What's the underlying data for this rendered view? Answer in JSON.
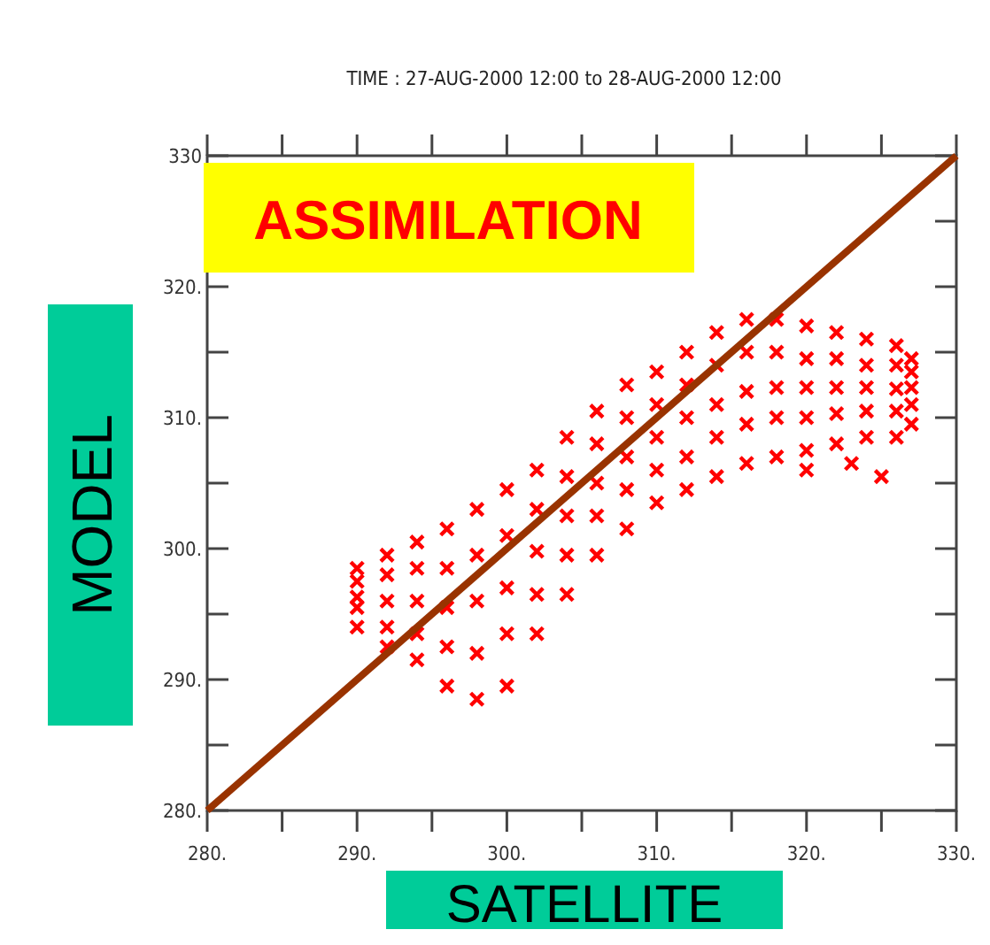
{
  "chart_data": {
    "type": "scatter",
    "title": "TIME : 27-AUG-2000 12:00 to 28-AUG-2000 12:00",
    "subtitle": "ASSIMILATION",
    "xlabel": "SATELLITE",
    "ylabel": "MODEL",
    "xlim": [
      280,
      330
    ],
    "ylim": [
      280,
      330
    ],
    "xticks": [
      {
        "value": 280,
        "label": "280."
      },
      {
        "value": 285,
        "label": null
      },
      {
        "value": 290,
        "label": "290."
      },
      {
        "value": 295,
        "label": null
      },
      {
        "value": 300,
        "label": "300."
      },
      {
        "value": 305,
        "label": null
      },
      {
        "value": 310,
        "label": "310."
      },
      {
        "value": 315,
        "label": null
      },
      {
        "value": 320,
        "label": "320."
      },
      {
        "value": 325,
        "label": null
      },
      {
        "value": 330,
        "label": "330."
      }
    ],
    "yticks": [
      {
        "value": 280,
        "label": "280."
      },
      {
        "value": 285,
        "label": null
      },
      {
        "value": 290,
        "label": "290."
      },
      {
        "value": 295,
        "label": null
      },
      {
        "value": 300,
        "label": "300."
      },
      {
        "value": 305,
        "label": null
      },
      {
        "value": 310,
        "label": "310."
      },
      {
        "value": 315,
        "label": null
      },
      {
        "value": 320,
        "label": "320."
      },
      {
        "value": 325,
        "label": null
      },
      {
        "value": 330,
        "label": "330"
      }
    ],
    "grid": false,
    "series": [
      {
        "marker": "cross",
        "color": "#ff0000",
        "x": [
          290,
          290,
          290,
          290,
          290,
          292,
          292,
          292,
          292,
          292,
          294,
          294,
          294,
          294,
          294,
          296,
          296,
          296,
          296,
          296,
          298,
          298,
          298,
          298,
          298,
          300,
          300,
          300,
          300,
          300,
          302,
          302,
          302,
          302,
          302,
          304,
          304,
          304,
          304,
          304,
          306,
          306,
          306,
          306,
          306,
          308,
          308,
          308,
          308,
          308,
          310,
          310,
          310,
          310,
          310,
          312,
          312,
          312,
          312,
          312,
          314,
          314,
          314,
          314,
          314,
          316,
          316,
          316,
          316,
          316,
          318,
          318,
          318,
          318,
          318,
          320,
          320,
          320,
          320,
          320,
          322,
          322,
          322,
          322,
          322,
          324,
          324,
          324,
          324,
          324,
          326,
          326,
          326,
          326,
          326,
          327,
          327,
          327,
          327,
          327,
          323,
          325,
          320
        ],
        "values": [
          294,
          295.5,
          296.3,
          297.5,
          298.5,
          292.5,
          294,
          296,
          298,
          299.5,
          291.5,
          293.5,
          296,
          298.5,
          300.5,
          289.5,
          292.5,
          295.5,
          298.5,
          301.5,
          288.5,
          292,
          296,
          299.5,
          303,
          289.5,
          293.5,
          297,
          301,
          304.5,
          293.5,
          296.5,
          299.8,
          303,
          306,
          296.5,
          299.5,
          302.5,
          305.5,
          308.5,
          299.5,
          302.5,
          305,
          308,
          310.5,
          301.5,
          304.5,
          307,
          310,
          312.5,
          303.5,
          306,
          308.5,
          311,
          313.5,
          304.5,
          307,
          310,
          312.5,
          315,
          305.5,
          308.5,
          311,
          314,
          316.5,
          306.5,
          309.5,
          312,
          315,
          317.5,
          307,
          310,
          312.3,
          315,
          317.5,
          307.5,
          310,
          312.3,
          314.5,
          317,
          308,
          310.3,
          312.3,
          314.5,
          316.5,
          308.5,
          310.5,
          312.3,
          314,
          316,
          308.5,
          310.5,
          312.2,
          314,
          315.5,
          309.5,
          311,
          312.3,
          313.5,
          314.5,
          306.5,
          305.5,
          306
        ]
      },
      {
        "type": "line",
        "color": "#993300",
        "x": [
          280,
          330
        ],
        "values": [
          280,
          330
        ]
      }
    ]
  }
}
